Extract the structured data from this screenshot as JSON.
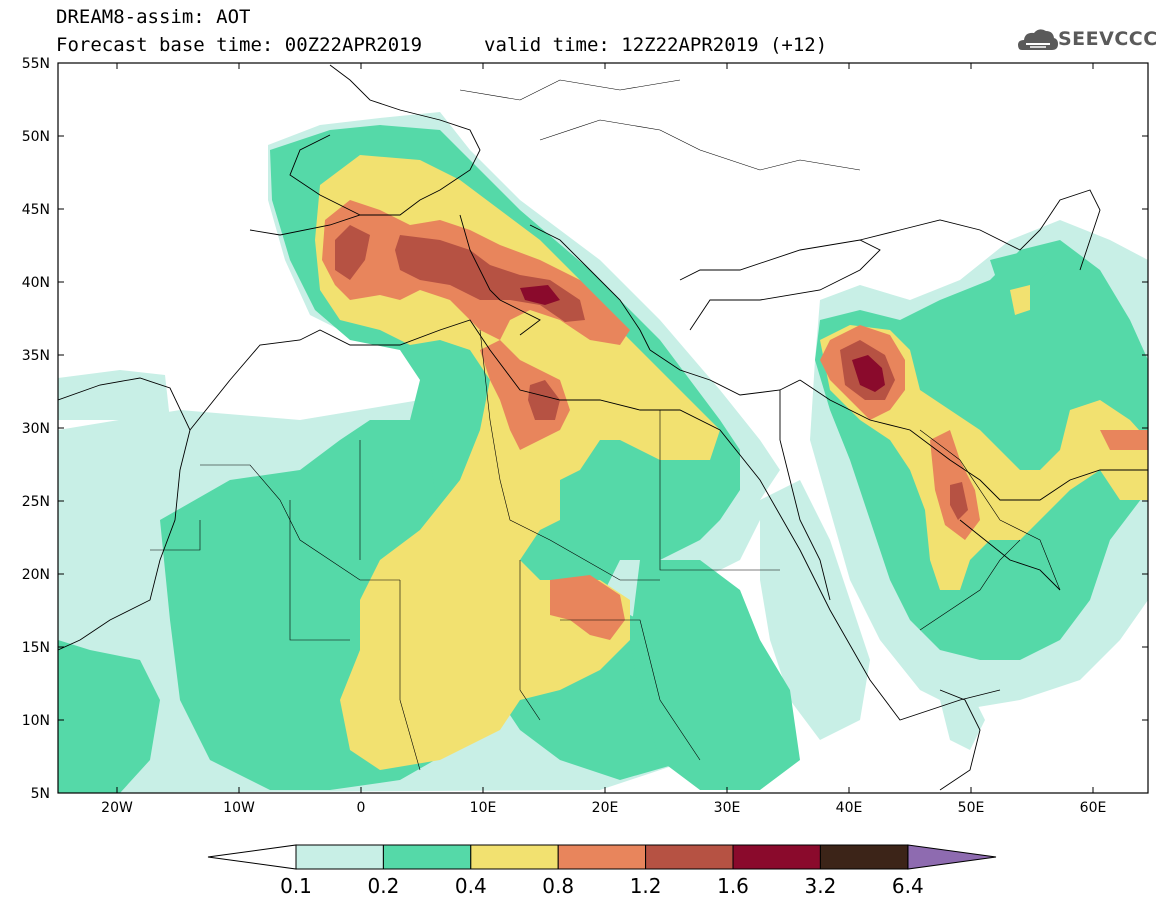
{
  "header": {
    "title": "DREAM8-assim: AOT",
    "base_time": "Forecast base time: 00Z22APR2019",
    "valid_time": "valid time: 12Z22APR2019 (+12)",
    "logo": "SEEVCCC"
  },
  "map": {
    "lon_labels": [
      "20W",
      "10W",
      "0",
      "10E",
      "20E",
      "30E",
      "40E",
      "50E",
      "60E"
    ],
    "lat_labels": [
      "55N",
      "50N",
      "45N",
      "40N",
      "35N",
      "30N",
      "25N",
      "20N",
      "15N",
      "10N",
      "5N"
    ]
  },
  "legend": {
    "ticks": [
      "0.1",
      "0.2",
      "0.4",
      "0.8",
      "1.2",
      "1.6",
      "3.2",
      "6.4"
    ],
    "colors": [
      "#c8efe6",
      "#55d9a8",
      "#f2e170",
      "#e8855c",
      "#b65243",
      "#8a0a2c",
      "#3c2418",
      "#8e6bb0"
    ]
  },
  "colors": {
    "c1": "#c8efe6",
    "c2": "#55d9a8",
    "c3": "#f2e170",
    "c4": "#e8855c",
    "c5": "#b65243",
    "c6": "#8a0a2c"
  }
}
